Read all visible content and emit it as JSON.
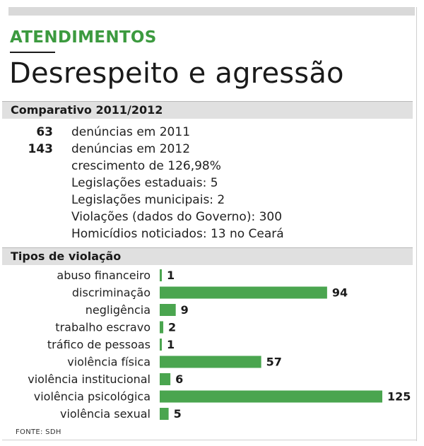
{
  "kicker": "ATENDIMENTOS",
  "headline": "Desrespeito e agressão",
  "section1": {
    "title": "Comparativo 2011/2012"
  },
  "stats": [
    {
      "num": "63",
      "text": "denúncias em 2011"
    },
    {
      "num": "143",
      "text": "denúncias em 2012"
    },
    {
      "num": "",
      "text": "crescimento de 126,98%"
    },
    {
      "num": "",
      "text": "Legislações estaduais: 5"
    },
    {
      "num": "",
      "text": "Legislações municipais: 2"
    },
    {
      "num": "",
      "text": "Violações (dados do Governo): 300"
    },
    {
      "num": "",
      "text": "Homicídios noticiados: 13 no Ceará"
    }
  ],
  "section2": {
    "title": "Tipos de violação"
  },
  "chart_data": {
    "type": "bar",
    "orientation": "horizontal",
    "categories": [
      "abuso financeiro",
      "discriminação",
      "negligência",
      "trabalho escravo",
      "tráfico de pessoas",
      "violência física",
      "violência institucional",
      "violência psicológica",
      "violência sexual"
    ],
    "values": [
      1,
      94,
      9,
      2,
      1,
      57,
      6,
      125,
      5
    ],
    "title": "Tipos de violação",
    "bar_color": "#4aa54f",
    "data_labels": true
  },
  "source": "FONTE: SDH",
  "colors": {
    "accent": "#3c9a3f",
    "bar": "#4aa54f",
    "section_bg": "#e0e0e0"
  }
}
